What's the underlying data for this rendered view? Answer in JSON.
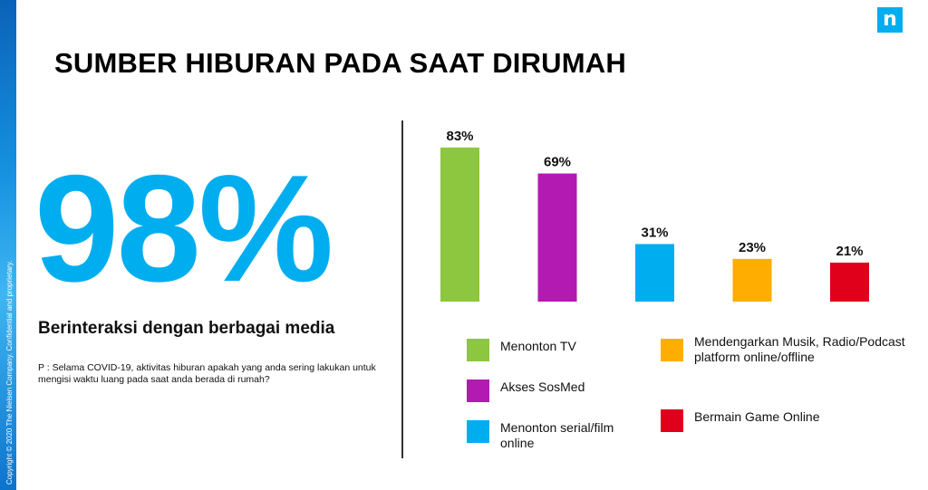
{
  "title": "SUMBER HIBURAN PADA SAAT DIRUMAH",
  "headline_stat": "98%",
  "headline_caption": "Berinteraksi dengan berbagai media",
  "question": "P : Selama COVID-19, aktivitas hiburan apakah yang anda sering lakukan untuk mengisi waktu luang pada saat anda berada di rumah?",
  "copyright": "Copyright © 2020 The Nielsen Company. Confidential and proprietary.",
  "logo_glyph": "n",
  "colors": {
    "accent": "#00aeef",
    "green": "#8dc63f",
    "purple": "#b21ab2",
    "blue": "#00aeef",
    "orange": "#ffad00",
    "red": "#e0001b"
  },
  "chart_data": {
    "type": "bar",
    "categories": [
      "Menonton TV",
      "Akses SosMed",
      "Menonton serial/film online",
      "Mendengarkan Musik, Radio/Podcast platform online/offline",
      "Bermain  Game Online"
    ],
    "values": [
      83,
      69,
      31,
      23,
      21
    ],
    "value_labels": [
      "83%",
      "69%",
      "31%",
      "23%",
      "21%"
    ],
    "bar_colors": [
      "#8dc63f",
      "#b21ab2",
      "#00aeef",
      "#ffad00",
      "#e0001b"
    ],
    "ylim": [
      0,
      100
    ],
    "grid": false,
    "legend_position": "bottom"
  },
  "legend": [
    {
      "label": "Menonton TV",
      "color": "#8dc63f"
    },
    {
      "label": "Akses SosMed",
      "color": "#b21ab2"
    },
    {
      "label": "Menonton serial/film online",
      "color": "#00aeef"
    },
    {
      "label": "Mendengarkan Musik, Radio/Podcast platform online/offline",
      "color": "#ffad00"
    },
    {
      "label": "Bermain  Game Online",
      "color": "#e0001b"
    }
  ]
}
